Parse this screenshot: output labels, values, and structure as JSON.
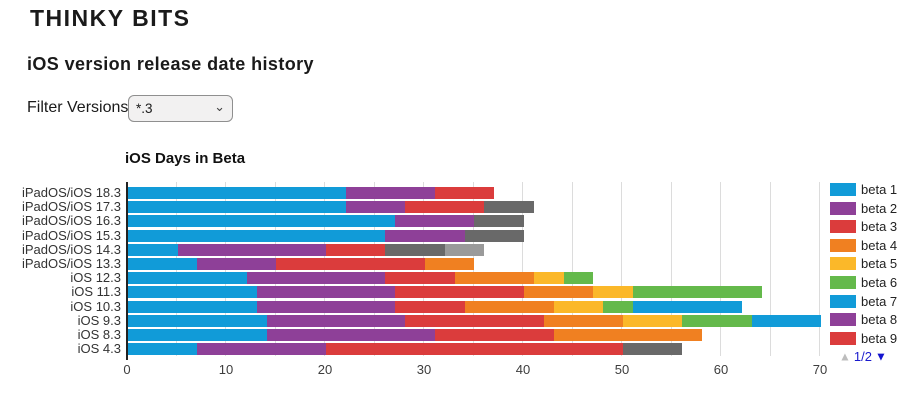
{
  "page": {
    "site_title": "THINKY BITS",
    "page_title": "iOS version release date history"
  },
  "filter": {
    "label": "Filter Versions:",
    "value": "*.3",
    "chevron": "⌄"
  },
  "chart_data": {
    "type": "bar",
    "variant": "horizontal-stacked",
    "title": "iOS Days in Beta",
    "xlabel": "",
    "ylabel": "",
    "xlim": [
      0,
      70
    ],
    "x_ticks": [
      0,
      10,
      20,
      30,
      40,
      50,
      60,
      70
    ],
    "gridline_step": 5,
    "grid": true,
    "palette": {
      "blue": "#119BD8",
      "purple": "#8E4098",
      "red": "#DB3C3C",
      "orange": "#F08021",
      "yellow": "#FBB829",
      "green": "#64B94B",
      "gray_dark": "#696969",
      "gray_light": "#9A9A9A"
    },
    "categories": [
      "iPadOS/iOS 18.3",
      "iPadOS/iOS 17.3",
      "iPadOS/iOS 16.3",
      "iPadOS/iOS 15.3",
      "iPadOS/iOS 14.3",
      "iPadOS/iOS 13.3",
      "iOS 12.3",
      "iOS 11.3",
      "iOS 10.3",
      "iOS 9.3",
      "iOS 8.3",
      "iOS 4.3"
    ],
    "rows": [
      {
        "label": "iPadOS/iOS 18.3",
        "total": 37,
        "segments": [
          {
            "color": "blue",
            "value": 22
          },
          {
            "color": "purple",
            "value": 9
          },
          {
            "color": "red",
            "value": 6
          }
        ]
      },
      {
        "label": "iPadOS/iOS 17.3",
        "total": 41,
        "segments": [
          {
            "color": "blue",
            "value": 22
          },
          {
            "color": "purple",
            "value": 6
          },
          {
            "color": "red",
            "value": 8
          },
          {
            "color": "gray_dark",
            "value": 5
          }
        ]
      },
      {
        "label": "iPadOS/iOS 16.3",
        "total": 40,
        "segments": [
          {
            "color": "blue",
            "value": 27
          },
          {
            "color": "purple",
            "value": 8
          },
          {
            "color": "gray_dark",
            "value": 5
          }
        ]
      },
      {
        "label": "iPadOS/iOS 15.3",
        "total": 40,
        "segments": [
          {
            "color": "blue",
            "value": 26
          },
          {
            "color": "purple",
            "value": 8
          },
          {
            "color": "gray_dark",
            "value": 6
          }
        ]
      },
      {
        "label": "iPadOS/iOS 14.3",
        "total": 36,
        "segments": [
          {
            "color": "blue",
            "value": 5
          },
          {
            "color": "purple",
            "value": 15
          },
          {
            "color": "red",
            "value": 6
          },
          {
            "color": "gray_dark",
            "value": 6
          },
          {
            "color": "gray_light",
            "value": 4
          }
        ]
      },
      {
        "label": "iPadOS/iOS 13.3",
        "total": 35,
        "segments": [
          {
            "color": "blue",
            "value": 7
          },
          {
            "color": "purple",
            "value": 8
          },
          {
            "color": "red",
            "value": 15
          },
          {
            "color": "orange",
            "value": 5
          }
        ]
      },
      {
        "label": "iOS 12.3",
        "total": 47,
        "segments": [
          {
            "color": "blue",
            "value": 12
          },
          {
            "color": "purple",
            "value": 14
          },
          {
            "color": "red",
            "value": 7
          },
          {
            "color": "orange",
            "value": 8
          },
          {
            "color": "yellow",
            "value": 3
          },
          {
            "color": "green",
            "value": 3
          }
        ]
      },
      {
        "label": "iOS 11.3",
        "total": 64,
        "segments": [
          {
            "color": "blue",
            "value": 13
          },
          {
            "color": "purple",
            "value": 14
          },
          {
            "color": "red",
            "value": 13
          },
          {
            "color": "orange",
            "value": 7
          },
          {
            "color": "yellow",
            "value": 4
          },
          {
            "color": "green",
            "value": 13
          }
        ]
      },
      {
        "label": "iOS 10.3",
        "total": 62,
        "segments": [
          {
            "color": "blue",
            "value": 13
          },
          {
            "color": "purple",
            "value": 14
          },
          {
            "color": "red",
            "value": 7
          },
          {
            "color": "orange",
            "value": 9
          },
          {
            "color": "yellow",
            "value": 5
          },
          {
            "color": "green",
            "value": 3
          },
          {
            "color": "blue",
            "value": 11
          }
        ]
      },
      {
        "label": "iOS 9.3",
        "total": 70,
        "segments": [
          {
            "color": "blue",
            "value": 14
          },
          {
            "color": "purple",
            "value": 14
          },
          {
            "color": "red",
            "value": 14
          },
          {
            "color": "orange",
            "value": 8
          },
          {
            "color": "yellow",
            "value": 6
          },
          {
            "color": "green",
            "value": 7
          },
          {
            "color": "blue",
            "value": 7
          }
        ]
      },
      {
        "label": "iOS 8.3",
        "total": 58,
        "segments": [
          {
            "color": "blue",
            "value": 14
          },
          {
            "color": "purple",
            "value": 17
          },
          {
            "color": "red",
            "value": 12
          },
          {
            "color": "orange",
            "value": 15
          }
        ]
      },
      {
        "label": "iOS 4.3",
        "total": 56,
        "segments": [
          {
            "color": "blue",
            "value": 7
          },
          {
            "color": "purple",
            "value": 13
          },
          {
            "color": "red",
            "value": 30
          },
          {
            "color": "gray_dark",
            "value": 6
          }
        ]
      }
    ],
    "legend": {
      "position": "right",
      "items": [
        {
          "label": "beta 1",
          "color": "blue"
        },
        {
          "label": "beta 2",
          "color": "purple"
        },
        {
          "label": "beta 3",
          "color": "red"
        },
        {
          "label": "beta 4",
          "color": "orange"
        },
        {
          "label": "beta 5",
          "color": "yellow"
        },
        {
          "label": "beta 6",
          "color": "green"
        },
        {
          "label": "beta 7",
          "color": "blue"
        },
        {
          "label": "beta 8",
          "color": "purple"
        },
        {
          "label": "beta 9",
          "color": "red"
        }
      ],
      "pager": {
        "up": "▲",
        "indicator": "1/2",
        "down": "▼"
      }
    }
  }
}
